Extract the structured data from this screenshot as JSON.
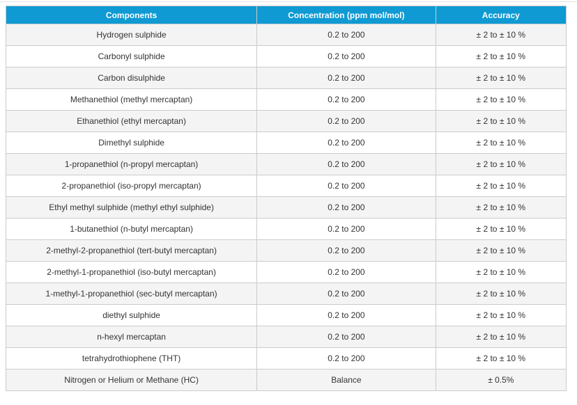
{
  "colors": {
    "header_bg": "#0f9ad3",
    "header_text": "#ffffff",
    "stripe_bg": "#f4f4f4",
    "border": "#cbcbcb",
    "body_text": "#333333",
    "top_divider": "#e2e2e2"
  },
  "table": {
    "headers": [
      "Components",
      "Concentration (ppm mol/mol)",
      "Accuracy"
    ],
    "rows": [
      [
        "Hydrogen sulphide",
        "0.2 to 200",
        "± 2 to ± 10 %"
      ],
      [
        "Carbonyl sulphide",
        "0.2 to 200",
        "± 2 to ± 10 %"
      ],
      [
        "Carbon disulphide",
        "0.2 to 200",
        "± 2 to ± 10 %"
      ],
      [
        "Methanethiol (methyl mercaptan)",
        "0.2 to 200",
        "± 2 to ± 10 %"
      ],
      [
        "Ethanethiol (ethyl mercaptan)",
        "0.2 to 200",
        "± 2 to ± 10 %"
      ],
      [
        "Dimethyl sulphide",
        "0.2 to 200",
        "± 2 to ± 10 %"
      ],
      [
        "1-propanethiol (n-propyl mercaptan)",
        "0.2 to 200",
        "± 2 to ± 10 %"
      ],
      [
        "2-propanethiol (iso-propyl mercaptan)",
        "0.2 to 200",
        "± 2 to ± 10 %"
      ],
      [
        "Ethyl methyl sulphide (methyl ethyl sulphide)",
        "0.2 to 200",
        "± 2 to ± 10 %"
      ],
      [
        "1-butanethiol (n-butyl mercaptan)",
        "0.2 to 200",
        "± 2 to ± 10 %"
      ],
      [
        "2-methyl-2-propanethiol (tert-butyl mercaptan)",
        "0.2 to 200",
        "± 2 to ± 10 %"
      ],
      [
        "2-methyl-1-propanethiol (iso-butyl mercaptan)",
        "0.2 to 200",
        "± 2 to ± 10 %"
      ],
      [
        "1-methyl-1-propanethiol (sec-butyl mercaptan)",
        "0.2 to 200",
        "± 2 to ± 10 %"
      ],
      [
        "diethyl sulphide",
        "0.2 to 200",
        "± 2 to ± 10 %"
      ],
      [
        "n-hexyl mercaptan",
        "0.2 to 200",
        "± 2 to ± 10 %"
      ],
      [
        "tetrahydrothiophene (THT)",
        "0.2 to 200",
        "± 2 to ± 10 %"
      ],
      [
        "Nitrogen or Helium or Methane (HC)",
        "Balance",
        "± 0.5%"
      ]
    ]
  }
}
